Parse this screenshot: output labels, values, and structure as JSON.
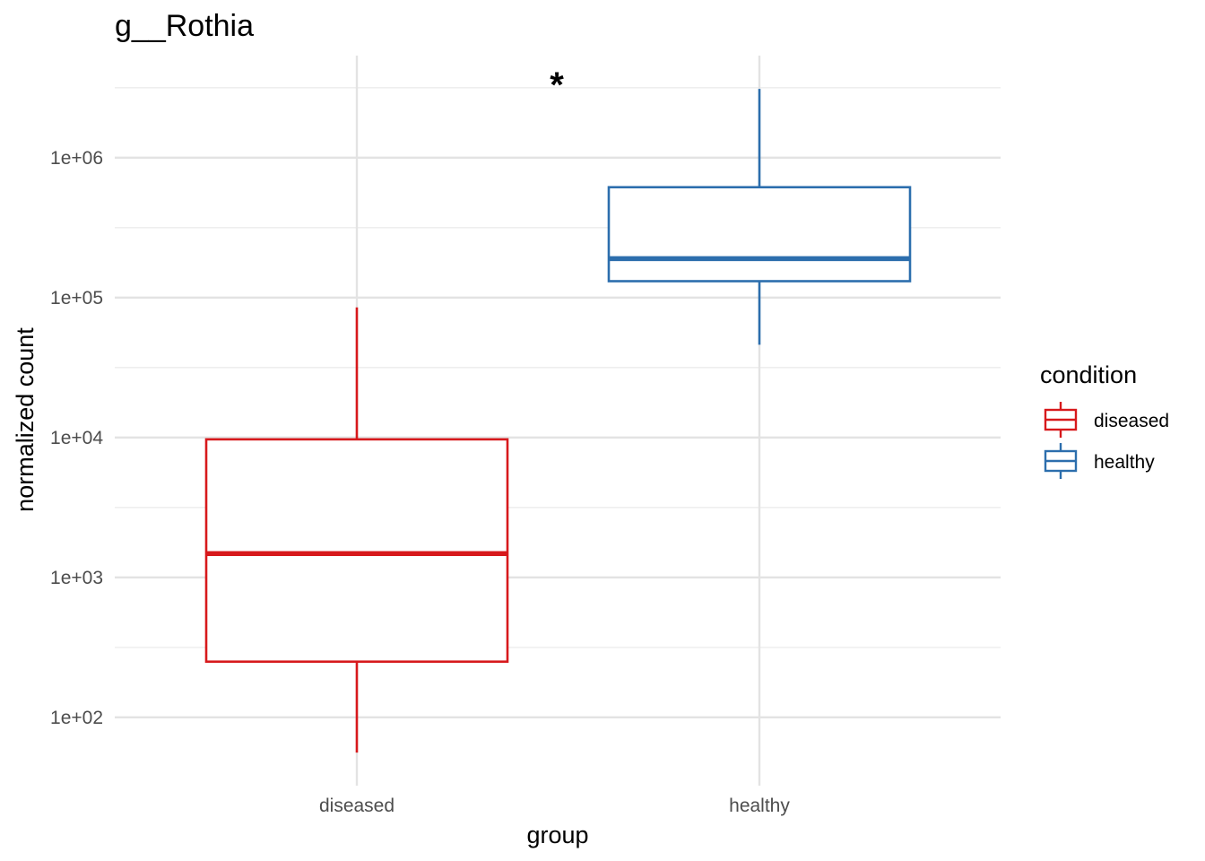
{
  "chart_data": {
    "type": "boxplot",
    "title": "g__Rothia",
    "xlabel": "group",
    "ylabel": "normalized count",
    "y_scale": "log10",
    "ylim": [
      35,
      4500000
    ],
    "y_ticks": [
      {
        "value": 100,
        "label": "1e+02"
      },
      {
        "value": 1000,
        "label": "1e+03"
      },
      {
        "value": 10000,
        "label": "1e+04"
      },
      {
        "value": 100000,
        "label": "1e+05"
      },
      {
        "value": 1000000,
        "label": "1e+06"
      }
    ],
    "y_minor_ticks": [
      316,
      3162,
      31623,
      316228,
      3162278
    ],
    "categories": [
      "diseased",
      "healthy"
    ],
    "grid": true,
    "legend": {
      "title": "condition",
      "position": "right",
      "entries": [
        {
          "label": "diseased",
          "color": "#d7191c"
        },
        {
          "label": "healthy",
          "color": "#2c6ead"
        }
      ]
    },
    "series": [
      {
        "name": "diseased",
        "category": "diseased",
        "color": "#d7191c",
        "whisker_low": 56,
        "q1": 250,
        "median": 1480,
        "q3": 9700,
        "whisker_high": 85000
      },
      {
        "name": "healthy",
        "category": "healthy",
        "color": "#2c6ead",
        "whisker_low": 46000,
        "q1": 131000,
        "median": 190000,
        "q3": 615000,
        "whisker_high": 3100000
      }
    ],
    "annotations": [
      {
        "text": "*",
        "between": [
          "diseased",
          "healthy"
        ]
      }
    ]
  }
}
